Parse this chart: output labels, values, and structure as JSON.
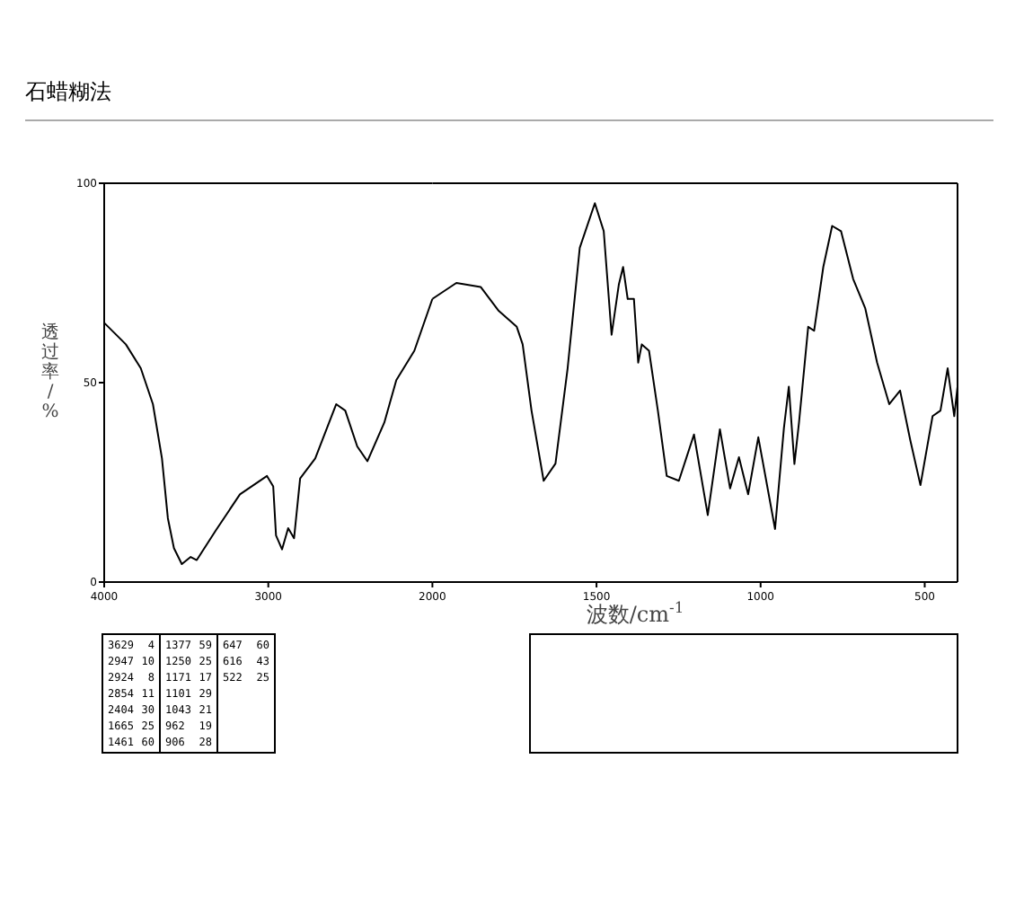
{
  "chart_data": [
    {
      "type": "line",
      "title": "石蜡糊法",
      "ylabel": "透过率/%",
      "xlim": [
        4000,
        2000
      ],
      "xticks": [
        4000,
        3000,
        2000
      ],
      "ylim": [
        0,
        100
      ],
      "yticks": [
        0,
        50,
        100
      ],
      "grid": false,
      "marker": "none",
      "line_style": "solid",
      "series": [
        {
          "color": "#000000",
          "x": [
            4000,
            3868,
            3777,
            3703,
            3648,
            3612,
            3575,
            3527,
            3473,
            3436,
            3319,
            3173,
            3008,
            2970,
            2953,
            2916,
            2879,
            2843,
            2806,
            2714,
            2586,
            2531,
            2458,
            2396,
            2293,
            2220,
            2110,
            2000
          ],
          "values": [
            65,
            59.6,
            53.6,
            44.6,
            31,
            16,
            8.5,
            4.5,
            6.3,
            5.5,
            13,
            22,
            26.6,
            24,
            11.7,
            8.2,
            13.5,
            11,
            26,
            31,
            44.6,
            43,
            34,
            30.3,
            40,
            50.6,
            58,
            71
          ]
        }
      ],
      "annotations": [
        "3629 4",
        "2947 10",
        "2924 8",
        "2854 11",
        "2404 30",
        "1665 25",
        "1461 60",
        "1377 59",
        "1250 25",
        "1171 17",
        "1101 29",
        "1043 21",
        "962 19",
        "906 28",
        "647 60",
        "616 43",
        "522 25"
      ]
    },
    {
      "type": "line",
      "xlabel": "波数/cm$^{-1}$",
      "xlim": [
        2000,
        400
      ],
      "xticks": [
        1500,
        1000,
        500
      ],
      "ylim": [
        0,
        100
      ],
      "tick_labels": "x",
      "grid": false,
      "marker": "none",
      "line_style": "solid",
      "series": [
        {
          "color": "#000000",
          "x": [
            2000,
            1927,
            1853,
            1798,
            1743,
            1725,
            1698,
            1661,
            1625,
            1588,
            1551,
            1505,
            1478,
            1454,
            1432,
            1419,
            1405,
            1386,
            1373,
            1362,
            1340,
            1313,
            1286,
            1249,
            1203,
            1161,
            1124,
            1093,
            1066,
            1038,
            1007,
            956,
            929,
            914,
            897,
            883,
            855,
            837,
            809,
            782,
            755,
            718,
            681,
            645,
            608,
            575,
            544,
            513,
            476,
            452,
            430,
            410,
            400
          ],
          "values": [
            71,
            75,
            74,
            68,
            64,
            59.6,
            43,
            25.4,
            29.7,
            53.6,
            83.8,
            95,
            88,
            62,
            74.6,
            79,
            71,
            71,
            55,
            59.6,
            58,
            43,
            26.6,
            25.4,
            37,
            16.8,
            38.3,
            23.5,
            31.3,
            22,
            36.3,
            13.3,
            38.6,
            49,
            29.6,
            40,
            64,
            63,
            79,
            89.3,
            88,
            76,
            68.6,
            55,
            44.6,
            48,
            35.6,
            24.3,
            41.6,
            43,
            53.6,
            41.6,
            49
          ]
        }
      ]
    }
  ]
}
